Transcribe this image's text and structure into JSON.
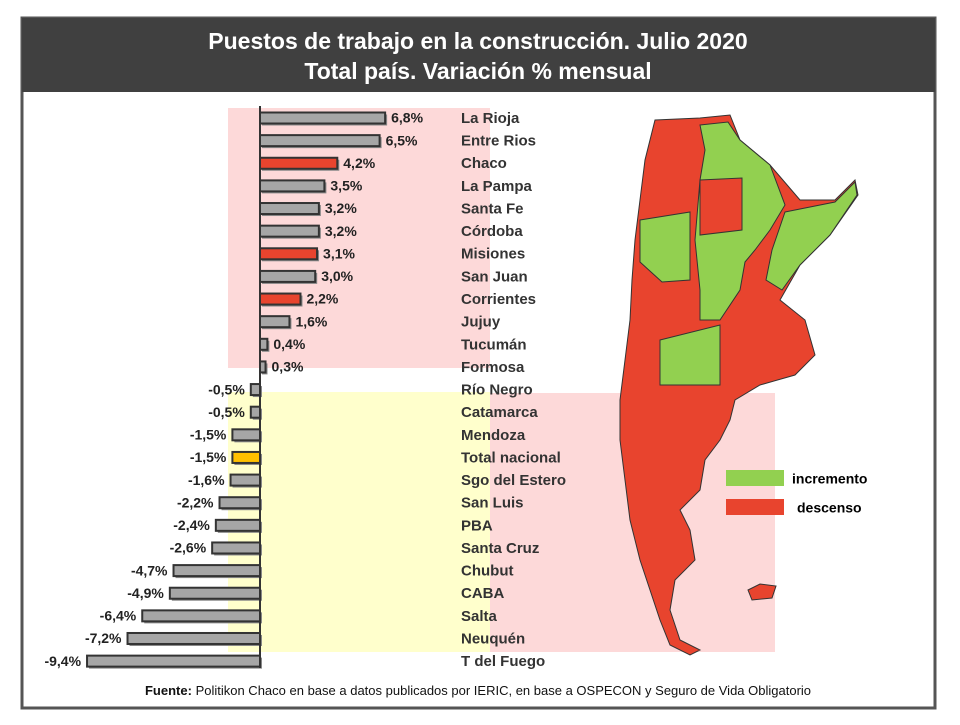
{
  "chart_data": {
    "type": "hbar",
    "title": "Puestos de trabajo en la construcción. Julio 2020",
    "subtitle": "Total país. Variación % mensual",
    "categories": [
      "La Rioja",
      "Entre Rios",
      "Chaco",
      "La Pampa",
      "Santa Fe",
      "Córdoba",
      "Misiones",
      "San Juan",
      "Corrientes",
      "Jujuy",
      "Tucumán",
      "Formosa",
      "Río Negro",
      "Catamarca",
      "Mendoza",
      "Total nacional",
      "Sgo del Estero",
      "San Luis",
      "PBA",
      "Santa Cruz",
      "Chubut",
      "CABA",
      "Salta",
      "Neuquén",
      "T del Fuego"
    ],
    "values": [
      6.8,
      6.5,
      4.2,
      3.5,
      3.2,
      3.2,
      3.1,
      3.0,
      2.2,
      1.6,
      0.4,
      0.3,
      -0.5,
      -0.5,
      -1.5,
      -1.5,
      -1.6,
      -2.2,
      -2.4,
      -2.6,
      -4.7,
      -4.9,
      -6.4,
      -7.2,
      -9.4
    ],
    "value_labels": [
      "6,8%",
      "6,5%",
      "4,2%",
      "3,5%",
      "3,2%",
      "3,2%",
      "3,1%",
      "3,0%",
      "2,2%",
      "1,6%",
      "0,4%",
      "0,3%",
      "-0,5%",
      "-0,5%",
      "-1,5%",
      "-1,5%",
      "-1,6%",
      "-2,2%",
      "-2,4%",
      "-2,6%",
      "-4,7%",
      "-4,9%",
      "-6,4%",
      "-7,2%",
      "-9,4%"
    ],
    "colors": [
      "#a6a6a6",
      "#a6a6a6",
      "#e8442e",
      "#a6a6a6",
      "#a6a6a6",
      "#a6a6a6",
      "#e8442e",
      "#a6a6a6",
      "#e8442e",
      "#a6a6a6",
      "#a6a6a6",
      "#a6a6a6",
      "#a6a6a6",
      "#a6a6a6",
      "#a6a6a6",
      "#ffc000",
      "#a6a6a6",
      "#a6a6a6",
      "#a6a6a6",
      "#a6a6a6",
      "#a6a6a6",
      "#a6a6a6",
      "#a6a6a6",
      "#a6a6a6",
      "#a6a6a6"
    ],
    "legend": [
      {
        "name": "incremento",
        "color": "#92d050"
      },
      {
        "name": "descenso",
        "color": "#e8442e"
      }
    ],
    "source_label": "Fuente:",
    "source": "Politikon Chaco en base a datos publicados por IERIC, en base a OSPECON y Seguro de Vida Obligatorio"
  }
}
